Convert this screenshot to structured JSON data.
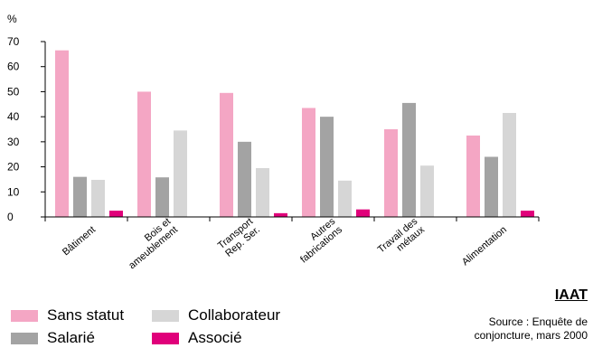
{
  "chart_data": {
    "type": "bar",
    "ylabel": "%",
    "ylim": [
      0,
      70
    ],
    "yticks": [
      0,
      10,
      20,
      30,
      40,
      50,
      60,
      70
    ],
    "categories": [
      [
        "Bâtiment"
      ],
      [
        "Bois et",
        "ameublement"
      ],
      [
        "Transport",
        "Rep. Ser."
      ],
      [
        "Autres",
        "fabrications"
      ],
      [
        "Travail des",
        "métaux"
      ],
      [
        "Alimentation"
      ]
    ],
    "series": [
      {
        "name": "Sans statut",
        "color": "#f4a6c4",
        "values": [
          66.5,
          50,
          49.5,
          43.5,
          35,
          32.5
        ]
      },
      {
        "name": "Salarié",
        "color": "#a3a3a3",
        "values": [
          16,
          15.8,
          30,
          40,
          45.5,
          24
        ]
      },
      {
        "name": "Collaborateur",
        "color": "#d6d6d6",
        "values": [
          14.8,
          34.5,
          19.5,
          14.5,
          20.5,
          41.5
        ]
      },
      {
        "name": "Associé",
        "color": "#e0007a",
        "values": [
          2.5,
          0,
          1.5,
          3,
          0,
          2.5
        ]
      }
    ],
    "grid": false,
    "legend_position": "bottom-left"
  },
  "legend": {
    "sans_statut": "Sans statut",
    "salarie": "Salarié",
    "collaborateur": "Collaborateur",
    "associe": "Associé"
  },
  "brand": "IAAT",
  "source_line1": "Source :  Enquête de",
  "source_line2": "conjoncture, mars 2000"
}
